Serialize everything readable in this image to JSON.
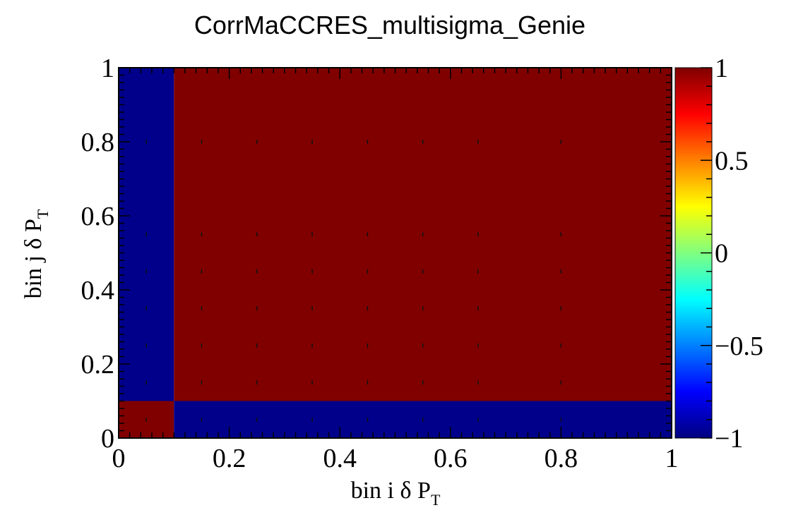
{
  "chart_data": {
    "type": "heatmap",
    "title": "CorrMaCCRES_multisigma_Genie",
    "xlabel": {
      "main": "bin i  δ P",
      "sub": "T"
    },
    "ylabel": {
      "main": "bin j δ P",
      "sub": "T"
    },
    "xlim": [
      0,
      1
    ],
    "ylim": [
      0,
      1
    ],
    "x_ticks": [
      "0",
      "0.2",
      "0.4",
      "0.6",
      "0.8",
      "1"
    ],
    "y_ticks": [
      "0",
      "0.2",
      "0.4",
      "0.6",
      "0.8",
      "1"
    ],
    "x_bin_edges": [
      0,
      0.1,
      1
    ],
    "y_bin_edges": [
      0,
      0.1,
      1
    ],
    "values": [
      [
        1,
        -1
      ],
      [
        -1,
        1
      ]
    ],
    "zlim": [
      -1,
      1
    ],
    "colorbar_ticks": [
      "1",
      "0.5",
      "0",
      "−0.5",
      "−1"
    ],
    "colorbar_tick_values": [
      1,
      0.5,
      0,
      -0.5,
      -1
    ],
    "colormap": [
      "#00007f",
      "#0000ff",
      "#0080ff",
      "#00ffff",
      "#80ff80",
      "#ffff00",
      "#ff8000",
      "#ff0000",
      "#7f0000"
    ],
    "low_color": "#00008b",
    "high_color": "#800000"
  }
}
